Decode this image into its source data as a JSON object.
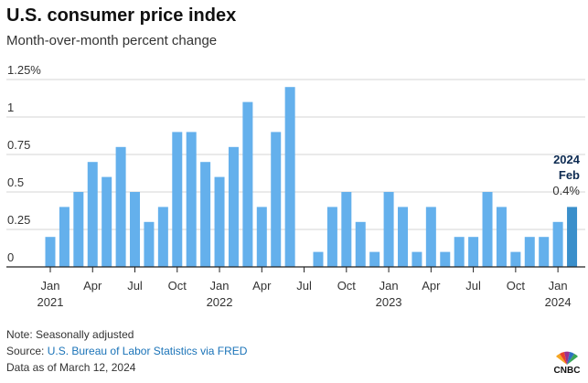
{
  "title": "U.S. consumer price index",
  "subtitle": "Month-over-month percent change",
  "chart_data": {
    "type": "bar",
    "title": "U.S. consumer price index",
    "subtitle": "Month-over-month percent change",
    "ylim": [
      0,
      1.25
    ],
    "yticks": [
      0,
      0.25,
      0.5,
      0.75,
      1,
      1.25
    ],
    "ytick_labels": [
      "0",
      "0.25",
      "0.5",
      "0.75",
      "1",
      "1.25%"
    ],
    "grid": true,
    "x_tick_labels": [
      {
        "month": "Jan",
        "year": "2021",
        "index": 0
      },
      {
        "month": "Apr",
        "index": 3
      },
      {
        "month": "Jul",
        "index": 6
      },
      {
        "month": "Oct",
        "index": 9
      },
      {
        "month": "Jan",
        "year": "2022",
        "index": 12
      },
      {
        "month": "Apr",
        "index": 15
      },
      {
        "month": "Jul",
        "index": 18
      },
      {
        "month": "Oct",
        "index": 21
      },
      {
        "month": "Jan",
        "year": "2023",
        "index": 24
      },
      {
        "month": "Apr",
        "index": 27
      },
      {
        "month": "Jul",
        "index": 30
      },
      {
        "month": "Oct",
        "index": 33
      },
      {
        "month": "Jan",
        "year": "2024",
        "index": 36
      }
    ],
    "categories": [
      "2021-01",
      "2021-02",
      "2021-03",
      "2021-04",
      "2021-05",
      "2021-06",
      "2021-07",
      "2021-08",
      "2021-09",
      "2021-10",
      "2021-11",
      "2021-12",
      "2022-01",
      "2022-02",
      "2022-03",
      "2022-04",
      "2022-05",
      "2022-06",
      "2022-07",
      "2022-08",
      "2022-09",
      "2022-10",
      "2022-11",
      "2022-12",
      "2023-01",
      "2023-02",
      "2023-03",
      "2023-04",
      "2023-05",
      "2023-06",
      "2023-07",
      "2023-08",
      "2023-09",
      "2023-10",
      "2023-11",
      "2023-12",
      "2024-01",
      "2024-02"
    ],
    "values": [
      0.2,
      0.4,
      0.5,
      0.7,
      0.6,
      0.8,
      0.5,
      0.3,
      0.4,
      0.9,
      0.9,
      0.7,
      0.6,
      0.8,
      1.1,
      0.4,
      0.9,
      1.2,
      0.0,
      0.1,
      0.4,
      0.5,
      0.3,
      0.1,
      0.5,
      0.4,
      0.1,
      0.4,
      0.1,
      0.2,
      0.2,
      0.5,
      0.4,
      0.1,
      0.2,
      0.2,
      0.3,
      0.4
    ],
    "colors": {
      "bar": "#64b0ec",
      "highlight": "#3a8fcb"
    },
    "annotation": {
      "year": "2024",
      "month": "Feb",
      "value": "0.4%"
    }
  },
  "footer": {
    "note": "Note: Seasonally adjusted",
    "source_prefix": "Source: ",
    "source_link": "U.S. Bureau of Labor Statistics via FRED",
    "date": "Data as of March 12, 2024"
  },
  "logo": "CNBC"
}
